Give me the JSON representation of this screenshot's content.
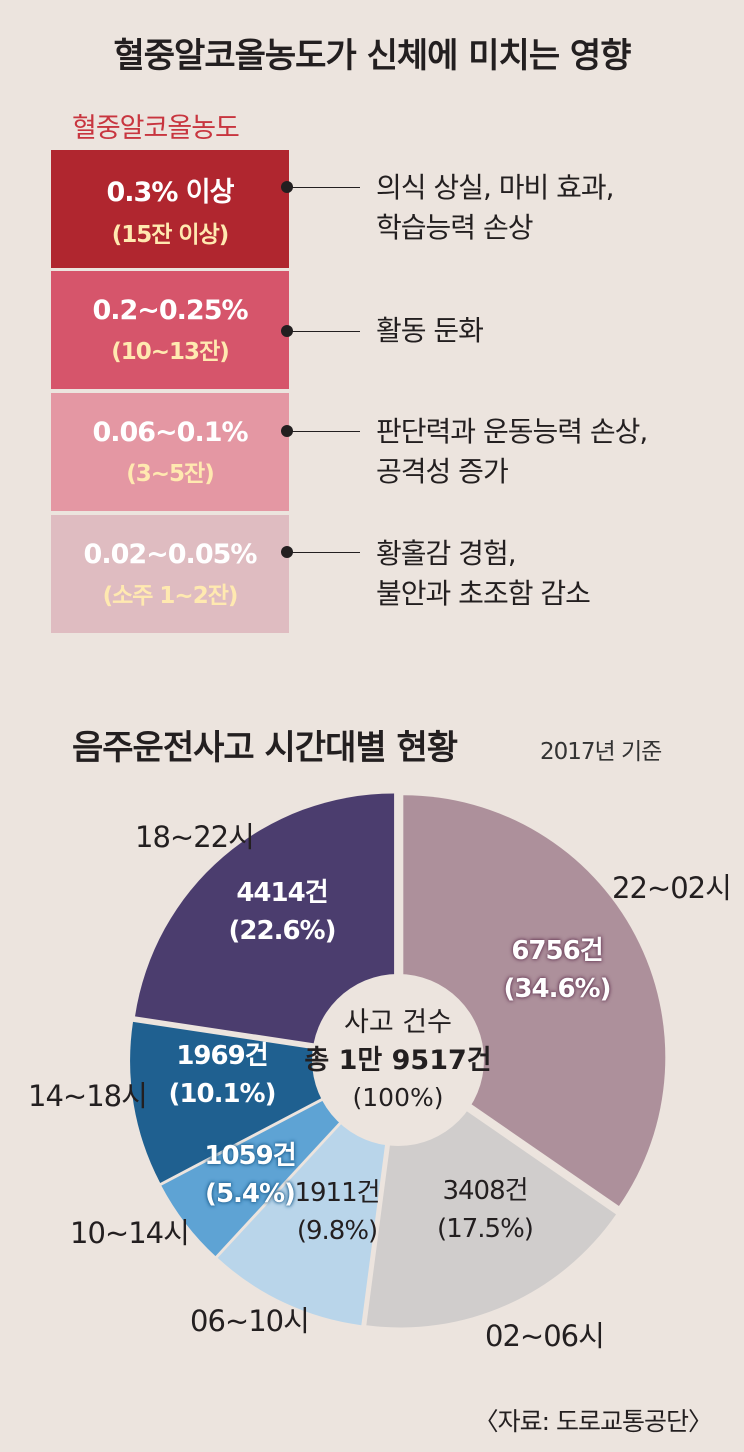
{
  "title": "혈중알코올농도가 신체에 미치는 영향",
  "legend_title": "혈중알코올농도",
  "levels": [
    {
      "range": "0.3% 이상",
      "cups": "(15잔 이상)",
      "effect_line1": "의식 상실, 마비 효과,",
      "effect_line2": "학습능력 손상",
      "color": "#b0262f"
    },
    {
      "range": "0.2~0.25%",
      "cups": "(10~13잔)",
      "effect_line1": "활동 둔화",
      "effect_line2": "",
      "color": "#d6556b"
    },
    {
      "range": "0.06~0.1%",
      "cups": "(3~5잔)",
      "effect_line1": "판단력과 운동능력 손상,",
      "effect_line2": "공격성 증가",
      "color": "#e497a3"
    },
    {
      "range": "0.02~0.05%",
      "cups": "(소주 1~2잔)",
      "effect_line1": "황홀감 경험,",
      "effect_line2": "불안과 초조함 감소",
      "color": "#dfbcc1"
    }
  ],
  "chart_title": "음주운전사고 시간대별 현황",
  "chart_basis": "2017년 기준",
  "center": {
    "line1": "사고 건수",
    "line2": "총 1만 9517건",
    "line3": "(100%)"
  },
  "source": "〈자료: 도로교통공단〉",
  "chart_data": {
    "type": "pie",
    "title": "음주운전사고 시간대별 현황",
    "total_label": "총 1만 9517건",
    "slices": [
      {
        "name": "22~02시",
        "count": 6756,
        "count_label": "6756건",
        "percent": 34.6,
        "percent_label": "(34.6%)",
        "color": "#ad909b"
      },
      {
        "name": "02~06시",
        "count": 3408,
        "count_label": "3408건",
        "percent": 17.5,
        "percent_label": "(17.5%)",
        "color": "#d0cdcc"
      },
      {
        "name": "06~10시",
        "count": 1911,
        "count_label": "1911건",
        "percent": 9.8,
        "percent_label": "(9.8%)",
        "color": "#b9d5ea"
      },
      {
        "name": "10~14시",
        "count": 1059,
        "count_label": "1059건",
        "percent": 5.4,
        "percent_label": "(5.4%)",
        "color": "#5ea3d4"
      },
      {
        "name": "14~18시",
        "count": 1969,
        "count_label": "1969건",
        "percent": 10.1,
        "percent_label": "(10.1%)",
        "color": "#1f6090"
      },
      {
        "name": "18~22시",
        "count": 4414,
        "count_label": "4414건",
        "percent": 22.6,
        "percent_label": "(22.6%)",
        "color": "#4b3d6e"
      }
    ]
  }
}
